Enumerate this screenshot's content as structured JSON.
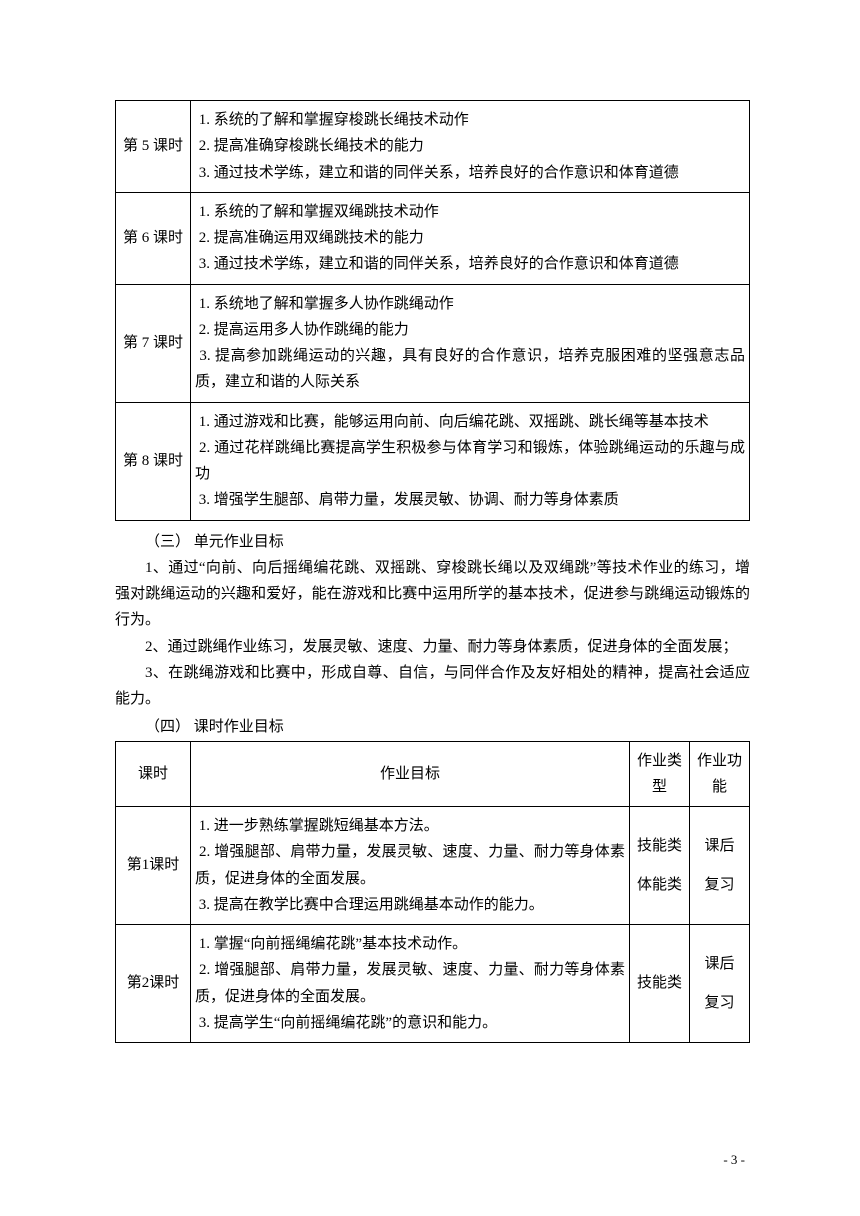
{
  "table1": {
    "rows": [
      {
        "lesson": "第 5 课时",
        "goals": " 1. 系统的了解和掌握穿梭跳长绳技术动作\n 2. 提高准确穿梭跳长绳技术的能力\n 3. 通过技术学练，建立和谐的同伴关系，培养良好的合作意识和体育道德"
      },
      {
        "lesson": "第 6 课时",
        "goals": " 1. 系统的了解和掌握双绳跳技术动作\n 2. 提高准确运用双绳跳技术的能力\n 3. 通过技术学练，建立和谐的同伴关系，培养良好的合作意识和体育道德"
      },
      {
        "lesson": "第 7 课时",
        "goals": " 1. 系统地了解和掌握多人协作跳绳动作\n 2. 提高运用多人协作跳绳的能力\n 3. 提高参加跳绳运动的兴趣，具有良好的合作意识，培养克服困难的坚强意志品质，建立和谐的人际关系"
      },
      {
        "lesson": "第 8 课时",
        "goals": " 1. 通过游戏和比赛，能够运用向前、向后编花跳、双摇跳、跳长绳等基本技术\n 2. 通过花样跳绳比赛提高学生积极参与体育学习和锻炼，体验跳绳运动的乐趣与成功\n 3. 增强学生腿部、肩带力量，发展灵敏、协调、耐力等身体素质"
      }
    ]
  },
  "section3": {
    "heading": "（三）  单元作业目标",
    "p1": "1、通过“向前、向后摇绳编花跳、双摇跳、穿梭跳长绳以及双绳跳”等技术作业的练习，增强对跳绳运动的兴趣和爱好，能在游戏和比赛中运用所学的基本技术，促进参与跳绳运动锻炼的行为。",
    "p2": "2、通过跳绳作业练习，发展灵敏、速度、力量、耐力等身体素质，促进身体的全面发展；",
    "p3": "3、在跳绳游戏和比赛中，形成自尊、自信，与同伴合作及友好相处的精神，提高社会适应能力。"
  },
  "section4": {
    "heading": "（四）  课时作业目标"
  },
  "table2": {
    "headers": {
      "c1": "课时",
      "c2": "作业目标",
      "c3": "作业类型",
      "c4": "作业功能"
    },
    "rows": [
      {
        "lesson": "第1课时",
        "goals": " 1. 进一步熟练掌握跳短绳基本方法。\n 2. 增强腿部、肩带力量，发展灵敏、速度、力量、耐力等身体素质，促进身体的全面发展。\n 3. 提高在教学比赛中合理运用跳绳基本动作的能力。",
        "type": "技能类\n体能类",
        "func": "课后\n复习"
      },
      {
        "lesson": "第2课时",
        "goals": " 1. 掌握“向前摇绳编花跳”基本技术动作。\n 2. 增强腿部、肩带力量，发展灵敏、速度、力量、耐力等身体素质，促进身体的全面发展。\n 3. 提高学生“向前摇绳编花跳”的意识和能力。",
        "type": "技能类",
        "func": "课后\n复习"
      }
    ]
  },
  "pageNumber": "- 3 -"
}
